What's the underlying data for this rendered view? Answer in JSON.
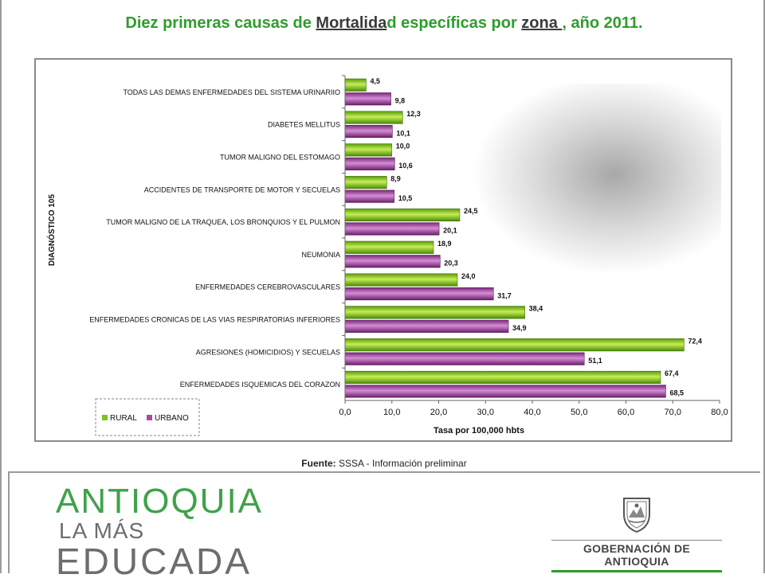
{
  "title": {
    "part1": "Diez primeras causas de ",
    "part2": "Mortalida",
    "part3": "d específicas por ",
    "part4": "zona ",
    "part5": ", año 2011."
  },
  "source": {
    "label": "Fuente:",
    "text": " SSSA - Información preliminar"
  },
  "footer": {
    "logo_line1": "ANTIOQUIA",
    "logo_line2": "LA MÁS",
    "logo_line3": "EDUCADA",
    "gov_name": "GOBERNACIÓN DE ANTIOQUIA"
  },
  "colors": {
    "rural": "#7cc41a",
    "urbano": "#a64ca6",
    "title": "#2e9d2e"
  },
  "chart_data": {
    "type": "bar",
    "orientation": "horizontal",
    "ylabel": "DIAGNÓSTICO 105",
    "xlabel": "Tasa por 100,000 hbts",
    "xlim": [
      0,
      80
    ],
    "xticks": [
      "0,0",
      "10,0",
      "20,0",
      "30,0",
      "40,0",
      "50,0",
      "60,0",
      "70,0",
      "80,0"
    ],
    "categories": [
      "TODAS LAS DEMAS ENFERMEDADES DEL SISTEMA URINARIIO",
      "DIABETES MELLITUS",
      "TUMOR MALIGNO DEL ESTOMAGO",
      "ACCIDENTES DE TRANSPORTE DE MOTOR Y SECUELAS",
      "TUMOR MALIGNO DE LA TRAQUEA, LOS BRONQUIOS Y EL PULMON",
      "NEUMONIA",
      "ENFERMEDADES CEREBROVASCULARES",
      "ENFERMEDADES CRONICAS DE LAS VIAS RESPIRATORIAS INFERIORES",
      "AGRESIONES (HOMICIDIOS) Y SECUELAS",
      "ENFERMEDADES ISQUEMICAS DEL CORAZON"
    ],
    "series": [
      {
        "name": "RURAL",
        "values": [
          4.5,
          12.3,
          10.0,
          8.9,
          24.5,
          18.9,
          24.0,
          38.4,
          72.4,
          67.4
        ],
        "labels": [
          "4,5",
          "12,3",
          "10,0",
          "8,9",
          "24,5",
          "18,9",
          "24,0",
          "38,4",
          "72,4",
          "67,4"
        ]
      },
      {
        "name": "URBANO",
        "values": [
          9.8,
          10.1,
          10.6,
          10.5,
          20.1,
          20.3,
          31.7,
          34.9,
          51.1,
          68.5
        ],
        "labels": [
          "9,8",
          "10,1",
          "10,6",
          "10,5",
          "20,1",
          "20,3",
          "31,7",
          "34,9",
          "51,1",
          "68,5"
        ]
      }
    ],
    "legend": "bottom-left",
    "grid": false
  }
}
